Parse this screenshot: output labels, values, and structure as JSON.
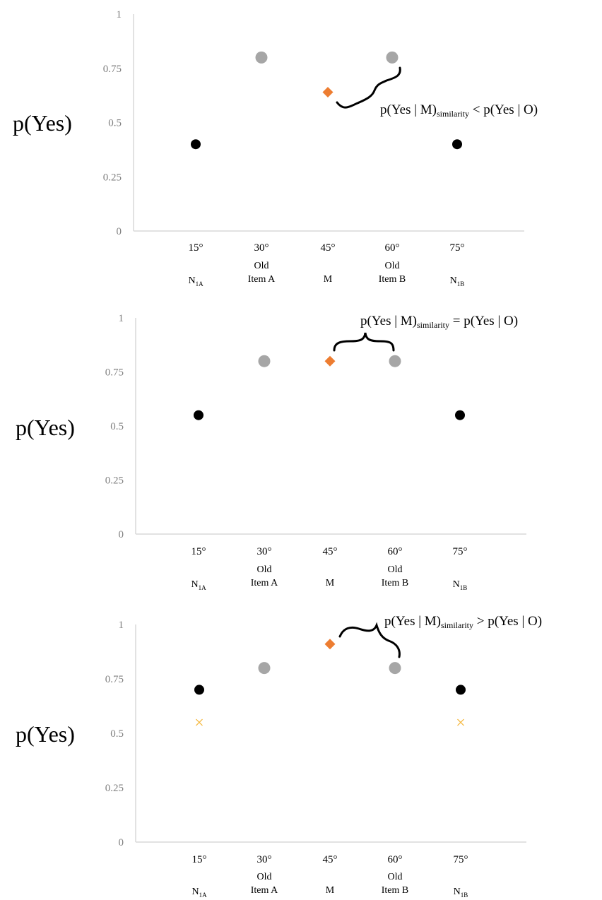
{
  "chart_data": [
    {
      "type": "scatter",
      "ylabel": "p(Yes)",
      "ylim": [
        0,
        1
      ],
      "yticks": [
        "0",
        "0.25",
        "0.5",
        "0.75",
        "1"
      ],
      "categories": [
        {
          "angle": "15°",
          "line1": "",
          "name": "N",
          "name_sub": "1A"
        },
        {
          "angle": "30°",
          "line1": "Old",
          "name": "Item A",
          "name_sub": ""
        },
        {
          "angle": "45°",
          "line1": "",
          "name": "M",
          "name_sub": ""
        },
        {
          "angle": "60°",
          "line1": "Old",
          "name": "Item B",
          "name_sub": ""
        },
        {
          "angle": "75°",
          "line1": "",
          "name": "N",
          "name_sub": "1B"
        }
      ],
      "points": [
        {
          "x": "15°",
          "y": 0.4,
          "marker": "circle",
          "color": "#000000"
        },
        {
          "x": "30°",
          "y": 0.8,
          "marker": "circle",
          "color": "#a6a6a6"
        },
        {
          "x": "45°",
          "y": 0.64,
          "marker": "diamond",
          "color": "#ed7d31"
        },
        {
          "x": "60°",
          "y": 0.8,
          "marker": "circle",
          "color": "#a6a6a6"
        },
        {
          "x": "75°",
          "y": 0.4,
          "marker": "circle",
          "color": "#000000"
        }
      ],
      "annotation": {
        "a": "p(Yes  |  M)",
        "sub": "similarity",
        "b": " < p(Yes  |  O)"
      }
    },
    {
      "type": "scatter",
      "ylabel": "p(Yes)",
      "ylim": [
        0,
        1
      ],
      "yticks": [
        "0",
        "0.25",
        "0.5",
        "0.75",
        "1"
      ],
      "categories": [
        {
          "angle": "15°",
          "line1": "",
          "name": "N",
          "name_sub": "1A"
        },
        {
          "angle": "30°",
          "line1": "Old",
          "name": "Item A",
          "name_sub": ""
        },
        {
          "angle": "45°",
          "line1": "",
          "name": "M",
          "name_sub": ""
        },
        {
          "angle": "60°",
          "line1": "Old",
          "name": "Item B",
          "name_sub": ""
        },
        {
          "angle": "75°",
          "line1": "",
          "name": "N",
          "name_sub": "1B"
        }
      ],
      "points": [
        {
          "x": "15°",
          "y": 0.55,
          "marker": "circle",
          "color": "#000000"
        },
        {
          "x": "30°",
          "y": 0.8,
          "marker": "circle",
          "color": "#a6a6a6"
        },
        {
          "x": "45°",
          "y": 0.8,
          "marker": "diamond",
          "color": "#ed7d31"
        },
        {
          "x": "60°",
          "y": 0.8,
          "marker": "circle",
          "color": "#a6a6a6"
        },
        {
          "x": "75°",
          "y": 0.55,
          "marker": "circle",
          "color": "#000000"
        }
      ],
      "annotation": {
        "a": "p(Yes  |  M)",
        "sub": "similarity",
        "b": " = p(Yes  |  O)"
      }
    },
    {
      "type": "scatter",
      "ylabel": "p(Yes)",
      "ylim": [
        0,
        1
      ],
      "yticks": [
        "0",
        "0.25",
        "0.5",
        "0.75",
        "1"
      ],
      "categories": [
        {
          "angle": "15°",
          "line1": "",
          "name": "N",
          "name_sub": "1A"
        },
        {
          "angle": "30°",
          "line1": "Old",
          "name": "Item A",
          "name_sub": ""
        },
        {
          "angle": "45°",
          "line1": "",
          "name": "M",
          "name_sub": ""
        },
        {
          "angle": "60°",
          "line1": "Old",
          "name": "Item B",
          "name_sub": ""
        },
        {
          "angle": "75°",
          "line1": "",
          "name": "N",
          "name_sub": "1B"
        }
      ],
      "points": [
        {
          "x": "15°",
          "y": 0.7,
          "marker": "circle",
          "color": "#000000"
        },
        {
          "x": "30°",
          "y": 0.8,
          "marker": "circle",
          "color": "#a6a6a6"
        },
        {
          "x": "45°",
          "y": 0.91,
          "marker": "diamond",
          "color": "#ed7d31"
        },
        {
          "x": "60°",
          "y": 0.8,
          "marker": "circle",
          "color": "#a6a6a6"
        },
        {
          "x": "75°",
          "y": 0.7,
          "marker": "circle",
          "color": "#000000"
        },
        {
          "x": "15°",
          "y": 0.55,
          "marker": "x",
          "color": "#f5b942"
        },
        {
          "x": "75°",
          "y": 0.55,
          "marker": "x",
          "color": "#f5b942"
        }
      ],
      "annotation": {
        "a": "p(Yes  |  M)",
        "sub": "similarity",
        "b": " > p(Yes  |  O)"
      }
    }
  ]
}
